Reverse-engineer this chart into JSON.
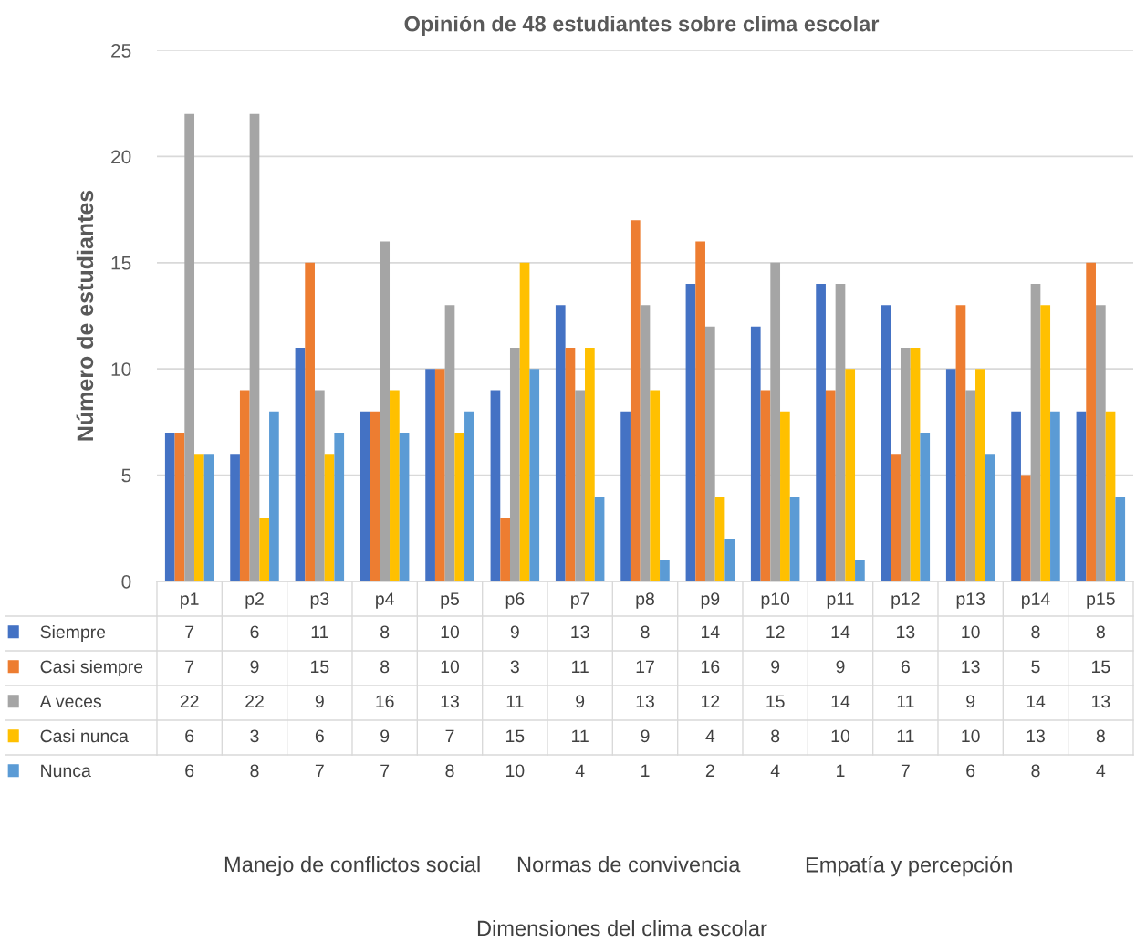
{
  "chart_data": {
    "type": "bar",
    "title": "Opinión de 48 estudiantes sobre clima escolar",
    "ylabel": "Número de estudiantes",
    "legend": "bottom left",
    "categories": [
      "p1",
      "p2",
      "p3",
      "p4",
      "p5",
      "p6",
      "p7",
      "p8",
      "p9",
      "p10",
      "p11",
      "p12",
      "p13",
      "p14",
      "p15"
    ],
    "series": [
      {
        "name": "Siempre",
        "color": "#4472c4",
        "values": [
          7,
          6,
          11,
          8,
          10,
          9,
          13,
          8,
          14,
          12,
          14,
          13,
          10,
          8,
          8
        ]
      },
      {
        "name": "Casi siempre",
        "color": "#ed7d31",
        "values": [
          7,
          9,
          15,
          8,
          10,
          3,
          11,
          17,
          16,
          9,
          9,
          6,
          13,
          5,
          15
        ]
      },
      {
        "name": "A veces",
        "color": "#a5a5a5",
        "values": [
          22,
          22,
          9,
          16,
          13,
          11,
          9,
          13,
          12,
          15,
          14,
          11,
          9,
          14,
          13
        ]
      },
      {
        "name": "Casi nunca",
        "color": "#ffc000",
        "values": [
          6,
          3,
          6,
          9,
          7,
          15,
          11,
          9,
          4,
          8,
          10,
          11,
          10,
          13,
          8
        ]
      },
      {
        "name": "Nunca",
        "color": "#5b9bd5",
        "values": [
          6,
          8,
          7,
          7,
          8,
          10,
          4,
          1,
          2,
          4,
          1,
          7,
          6,
          8,
          4
        ]
      }
    ],
    "ylim": [
      0,
      25
    ],
    "yticks": [
      0,
      5,
      10,
      15,
      20,
      25
    ],
    "grid": "y",
    "data_labels": true,
    "annotations": [
      "Manejo de conflictos social",
      "Normas de convivencia",
      "Empatía y percepción",
      "Dimensiones del clima escolar"
    ]
  }
}
